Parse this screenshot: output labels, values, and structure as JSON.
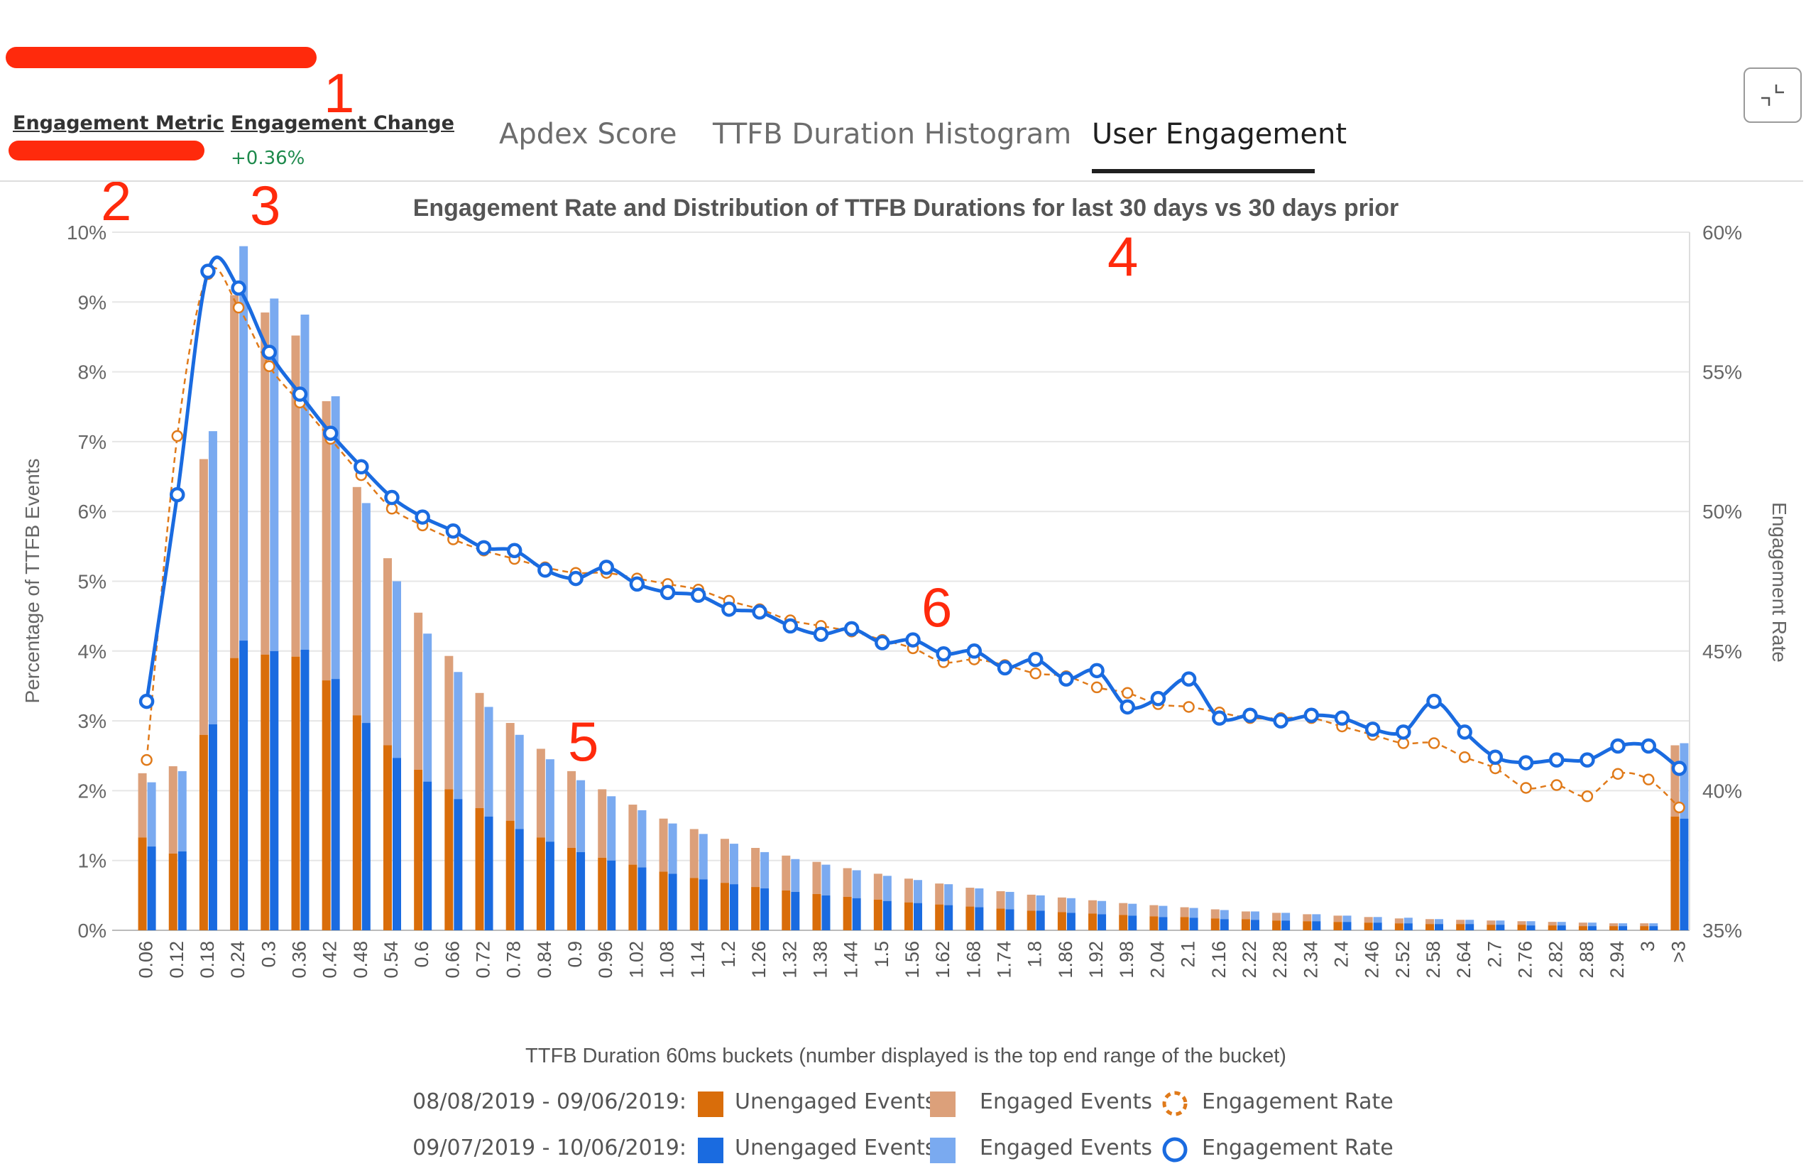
{
  "header": {
    "metric_label": "Engagement Metric",
    "change_label": "Engagement Change",
    "change_value": "+0.36%"
  },
  "annotations": [
    "1",
    "2",
    "3",
    "4",
    "5",
    "6"
  ],
  "tabs": [
    {
      "label": "Apdex Score",
      "active": false
    },
    {
      "label": "TTFB Duration Histogram",
      "active": false
    },
    {
      "label": "User Engagement",
      "active": true
    }
  ],
  "icons": {
    "expand_button": "collapse-arrows-icon"
  },
  "colors": {
    "prior_unengaged": "#d96d0a",
    "prior_engaged": "#dca07a",
    "current_unengaged": "#1a6be0",
    "current_engaged": "#7aaaf0",
    "prior_rate": "#e07a1a",
    "current_rate": "#1a6be0",
    "change_positive": "#1e8a4c",
    "redaction": "#ff2a0c"
  },
  "chart_data": {
    "type": "bar",
    "title": "Engagement Rate and Distribution of TTFB Durations for last 30 days vs 30 days prior",
    "xlabel": "TTFB Duration 60ms buckets (number displayed is the top end range of the bucket)",
    "ylabel": "Percentage of TTFB Events",
    "y2label": "Engagement Rate",
    "ylim": [
      0,
      10
    ],
    "y2lim": [
      35,
      60
    ],
    "yticks": [
      "0%",
      "1%",
      "2%",
      "3%",
      "4%",
      "5%",
      "6%",
      "7%",
      "8%",
      "9%",
      "10%"
    ],
    "y2ticks": [
      "35%",
      "40%",
      "45%",
      "50%",
      "55%",
      "60%"
    ],
    "grid": true,
    "legend_position": "bottom",
    "categories": [
      "0.06",
      "0.12",
      "0.18",
      "0.24",
      "0.3",
      "0.36",
      "0.42",
      "0.48",
      "0.54",
      "0.6",
      "0.66",
      "0.72",
      "0.78",
      "0.84",
      "0.9",
      "0.96",
      "1.02",
      "1.08",
      "1.14",
      "1.2",
      "1.26",
      "1.32",
      "1.38",
      "1.44",
      "1.5",
      "1.56",
      "1.62",
      "1.68",
      "1.74",
      "1.8",
      "1.86",
      "1.92",
      "1.98",
      "2.04",
      "2.1",
      "2.16",
      "2.22",
      "2.28",
      "2.34",
      "2.4",
      "2.46",
      "2.52",
      "2.58",
      "2.64",
      "2.7",
      "2.76",
      "2.82",
      "2.88",
      "2.94",
      "3",
      ">3"
    ],
    "periods": [
      {
        "date_range": "08/08/2019 - 09/06/2019:",
        "unengaged_label": "Unengaged Events",
        "engaged_label": "Engaged Events",
        "rate_label": "Engagement Rate",
        "total_pct": [
          2.25,
          2.35,
          6.75,
          9.1,
          8.85,
          8.52,
          7.58,
          6.35,
          5.33,
          4.55,
          3.93,
          3.4,
          2.97,
          2.6,
          2.28,
          2.02,
          1.8,
          1.6,
          1.45,
          1.31,
          1.18,
          1.07,
          0.98,
          0.89,
          0.81,
          0.74,
          0.67,
          0.61,
          0.56,
          0.51,
          0.47,
          0.43,
          0.39,
          0.36,
          0.33,
          0.3,
          0.27,
          0.25,
          0.23,
          0.21,
          0.19,
          0.17,
          0.16,
          0.15,
          0.14,
          0.13,
          0.12,
          0.11,
          0.1,
          0.1,
          2.65
        ],
        "unengaged_pct": [
          1.33,
          1.1,
          2.8,
          3.9,
          3.95,
          3.92,
          3.58,
          3.08,
          2.65,
          2.3,
          2.02,
          1.75,
          1.57,
          1.33,
          1.18,
          1.04,
          0.94,
          0.84,
          0.75,
          0.68,
          0.62,
          0.57,
          0.52,
          0.48,
          0.44,
          0.4,
          0.37,
          0.34,
          0.31,
          0.28,
          0.26,
          0.24,
          0.22,
          0.2,
          0.19,
          0.17,
          0.16,
          0.14,
          0.13,
          0.12,
          0.11,
          0.1,
          0.09,
          0.09,
          0.08,
          0.08,
          0.07,
          0.06,
          0.06,
          0.06,
          1.63
        ],
        "engagement_rate": [
          41.1,
          52.7,
          58.5,
          57.3,
          55.2,
          53.9,
          52.6,
          51.3,
          50.1,
          49.5,
          49.0,
          48.6,
          48.3,
          48.0,
          47.8,
          47.8,
          47.6,
          47.4,
          47.2,
          46.8,
          46.5,
          46.1,
          45.9,
          45.7,
          45.4,
          45.1,
          44.6,
          44.7,
          44.5,
          44.2,
          44.1,
          43.7,
          43.5,
          43.1,
          43.0,
          42.8,
          42.6,
          42.6,
          42.6,
          42.3,
          42.0,
          41.7,
          41.7,
          41.2,
          40.8,
          40.1,
          40.2,
          39.8,
          40.6,
          40.4,
          39.4
        ]
      },
      {
        "date_range": "09/07/2019 - 10/06/2019:",
        "unengaged_label": "Unengaged Events",
        "engaged_label": "Engaged Events",
        "rate_label": "Engagement Rate",
        "total_pct": [
          2.12,
          2.28,
          7.15,
          9.8,
          9.05,
          8.82,
          7.65,
          6.12,
          5.0,
          4.25,
          3.7,
          3.2,
          2.8,
          2.45,
          2.15,
          1.92,
          1.72,
          1.53,
          1.38,
          1.24,
          1.12,
          1.02,
          0.94,
          0.86,
          0.78,
          0.72,
          0.66,
          0.6,
          0.55,
          0.5,
          0.46,
          0.42,
          0.38,
          0.35,
          0.32,
          0.29,
          0.27,
          0.25,
          0.23,
          0.21,
          0.19,
          0.18,
          0.16,
          0.15,
          0.14,
          0.13,
          0.12,
          0.11,
          0.1,
          0.1,
          2.68
        ],
        "unengaged_pct": [
          1.2,
          1.13,
          2.95,
          4.15,
          4.0,
          4.02,
          3.6,
          2.97,
          2.47,
          2.13,
          1.88,
          1.63,
          1.45,
          1.27,
          1.12,
          1.0,
          0.9,
          0.81,
          0.73,
          0.66,
          0.6,
          0.55,
          0.5,
          0.46,
          0.42,
          0.39,
          0.36,
          0.33,
          0.3,
          0.28,
          0.25,
          0.23,
          0.21,
          0.19,
          0.18,
          0.16,
          0.15,
          0.14,
          0.13,
          0.12,
          0.11,
          0.1,
          0.09,
          0.09,
          0.08,
          0.07,
          0.07,
          0.06,
          0.06,
          0.06,
          1.6
        ],
        "engagement_rate": [
          43.2,
          50.6,
          58.6,
          58.0,
          55.7,
          54.2,
          52.8,
          51.6,
          50.5,
          49.8,
          49.3,
          48.7,
          48.6,
          47.9,
          47.6,
          48.0,
          47.4,
          47.1,
          47.0,
          46.5,
          46.4,
          45.9,
          45.6,
          45.8,
          45.3,
          45.4,
          44.9,
          45.0,
          44.4,
          44.7,
          44.0,
          44.3,
          43.0,
          43.3,
          44.0,
          42.6,
          42.7,
          42.5,
          42.7,
          42.6,
          42.2,
          42.1,
          43.2,
          42.1,
          41.2,
          41.0,
          41.1,
          41.1,
          41.6,
          41.6,
          40.8
        ]
      }
    ]
  }
}
